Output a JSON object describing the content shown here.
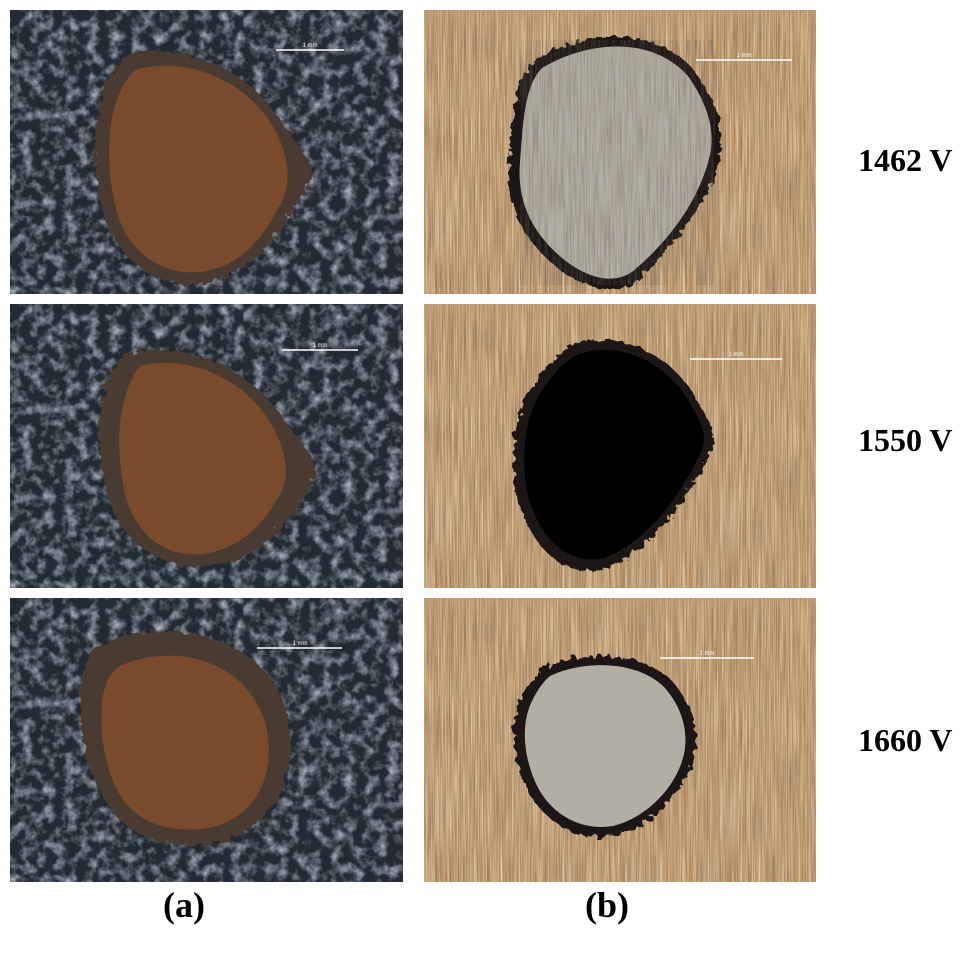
{
  "figure": {
    "captions": {
      "a": "(a)",
      "b": "(b)"
    },
    "rows": [
      {
        "voltage": "1462 V",
        "scale_bar": "1 mm"
      },
      {
        "voltage": "1550 V",
        "scale_bar": "1 mm"
      },
      {
        "voltage": "1660 V",
        "scale_bar": "1 mm"
      }
    ],
    "colors": {
      "coating_background": "#232a33",
      "coating_crater": "#7a4a2c",
      "coating_crater_rim": "#4a3a30",
      "metal_background": "#b58a5c",
      "metal_crater": "#b3aea3",
      "metal_crater_rim": "#1c1812",
      "scale_bar": "#ffffff"
    }
  }
}
